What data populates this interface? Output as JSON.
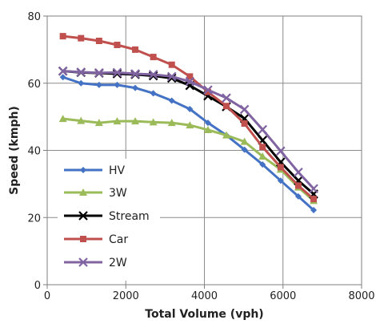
{
  "chart_data": {
    "type": "line",
    "title": "",
    "xlabel": "Total Volume (vph)",
    "ylabel": "Speed (kmph)",
    "xlim": [
      0,
      8000
    ],
    "ylim": [
      0,
      80
    ],
    "xticks": [
      0,
      2000,
      4000,
      6000,
      8000
    ],
    "yticks": [
      0,
      20,
      40,
      60,
      80
    ],
    "xtick_labels": [
      "0",
      "2000",
      "4000",
      "6000",
      "8000"
    ],
    "ytick_labels": [
      "0",
      "20",
      "40",
      "60",
      "80"
    ],
    "grid": true,
    "legend_position": "left",
    "x": [
      400,
      860,
      1320,
      1780,
      2240,
      2700,
      3170,
      3630,
      4090,
      4560,
      5020,
      5480,
      5940,
      6390,
      6780
    ],
    "series": [
      {
        "name": "HV",
        "color": "#4472c4",
        "marker": "diamond",
        "values": [
          61.8,
          60.0,
          59.5,
          59.5,
          58.6,
          57.0,
          54.8,
          52.3,
          48.2,
          44.5,
          40.2,
          35.8,
          31.0,
          26.3,
          22.2
        ]
      },
      {
        "name": "3W",
        "color": "#9bbb59",
        "marker": "triangle",
        "values": [
          49.4,
          48.8,
          48.2,
          48.7,
          48.7,
          48.4,
          48.2,
          47.5,
          46.1,
          44.5,
          42.6,
          38.2,
          34.3,
          29.0,
          25.0
        ]
      },
      {
        "name": "Stream",
        "color": "#000000",
        "marker": "x",
        "values": [
          63.6,
          63.2,
          63.0,
          62.8,
          62.6,
          62.2,
          61.5,
          59.3,
          56.2,
          53.0,
          49.5,
          43.0,
          36.5,
          31.0,
          27.0
        ]
      },
      {
        "name": "Car",
        "color": "#c0504d",
        "marker": "square",
        "values": [
          74.0,
          73.4,
          72.6,
          71.4,
          70.0,
          67.8,
          65.5,
          62.0,
          57.4,
          53.2,
          48.0,
          41.0,
          35.0,
          29.5,
          25.5
        ]
      },
      {
        "name": "2W",
        "color": "#8064a2",
        "marker": "x",
        "values": [
          63.6,
          63.3,
          63.1,
          63.2,
          62.8,
          62.6,
          62.0,
          60.5,
          58.0,
          55.6,
          52.2,
          46.2,
          39.8,
          33.5,
          28.6
        ]
      }
    ]
  }
}
